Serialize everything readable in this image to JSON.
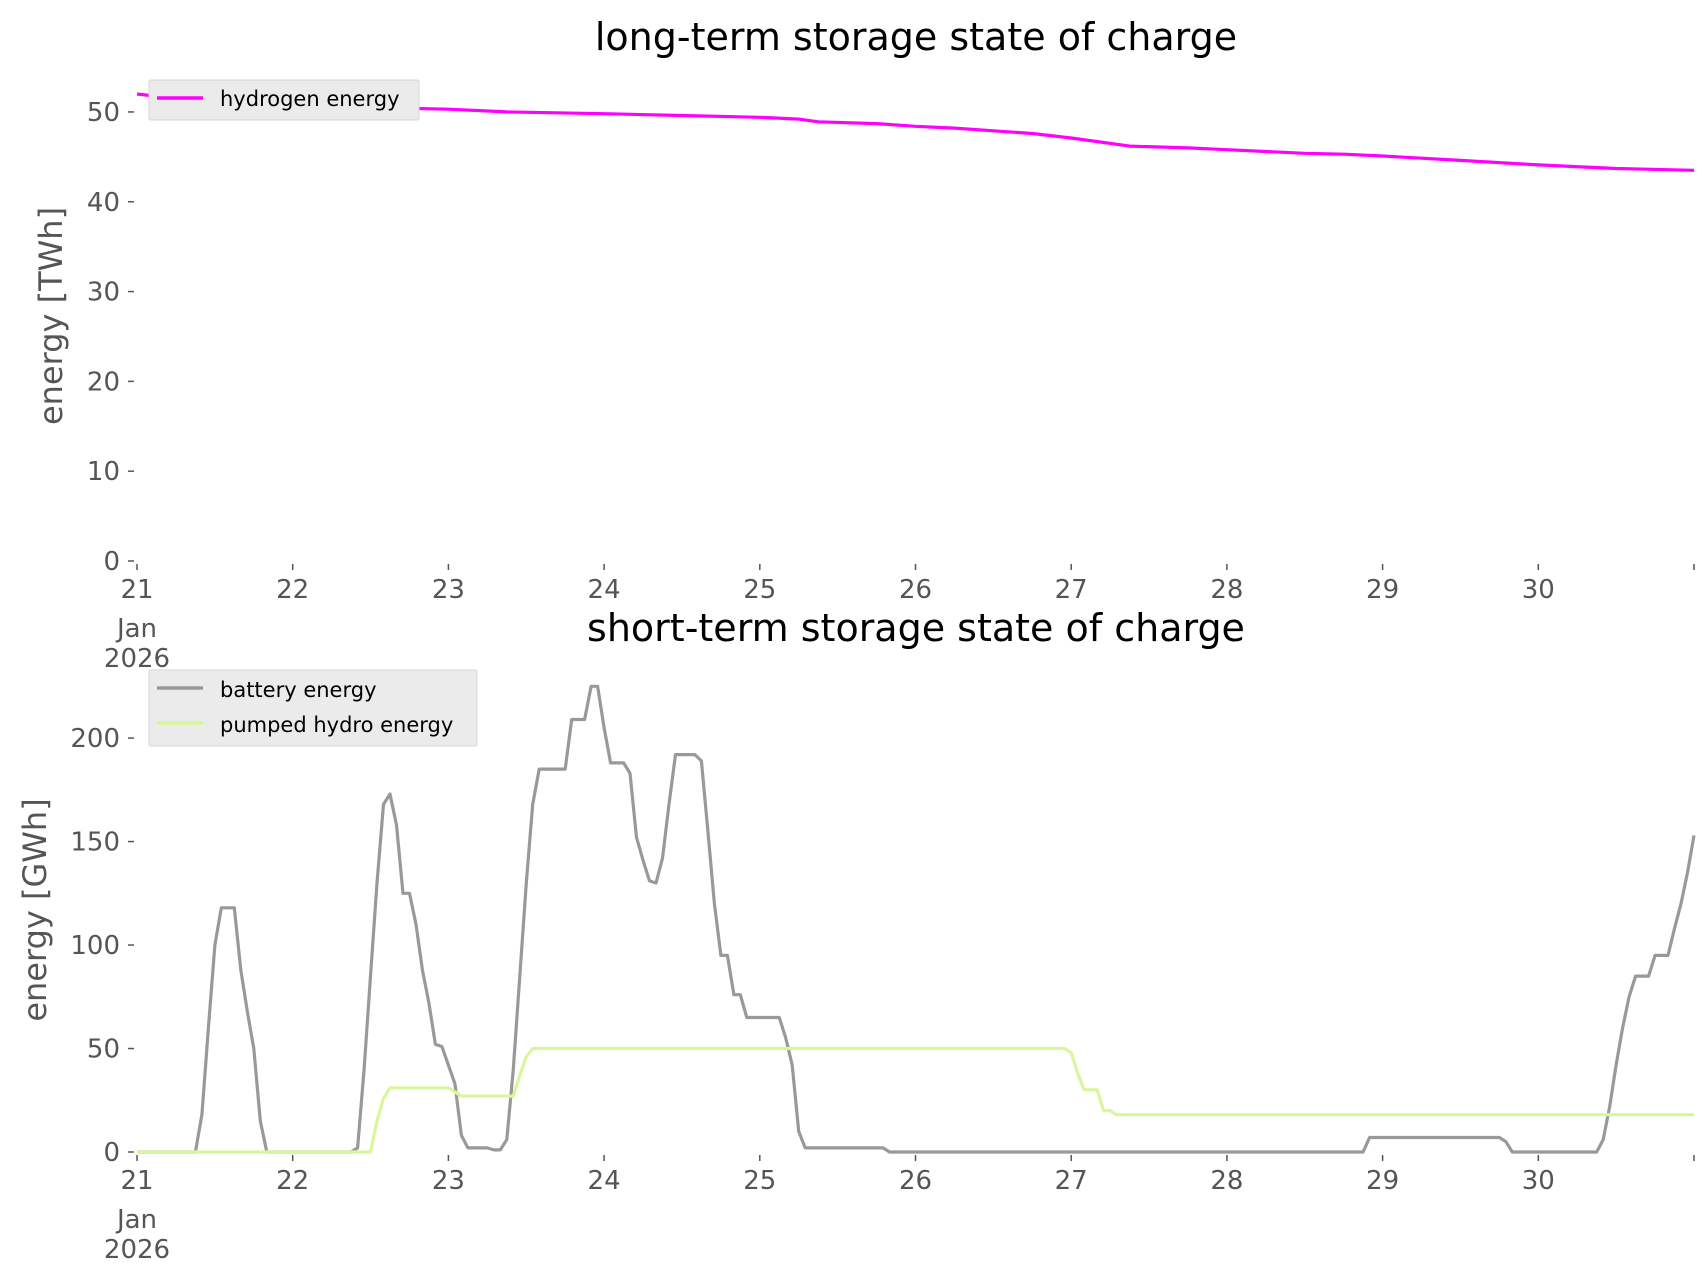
{
  "chart_data": [
    {
      "type": "line",
      "title": "long-term storage state of charge",
      "xlabel": "",
      "ylabel": "energy [TWh]",
      "x_range": [
        "2026-01-21",
        "2026-01-31"
      ],
      "xticks": [
        "21",
        "22",
        "23",
        "24",
        "25",
        "26",
        "27",
        "28",
        "29",
        "30"
      ],
      "xtick_sublabels": [
        "Jan",
        "2026"
      ],
      "ylim": [
        0,
        53
      ],
      "yticks": [
        "0",
        "10",
        "20",
        "30",
        "40",
        "50"
      ],
      "grid": false,
      "legend_position": "upper-left",
      "series": [
        {
          "name": "hydrogen energy",
          "color": "#ff00ff",
          "points": [
            [
              "2026-01-21 00:00",
              52.0
            ],
            [
              "2026-01-21 12:00",
              51.0
            ],
            [
              "2026-01-22 00:00",
              50.8
            ],
            [
              "2026-01-22 12:00",
              50.5
            ],
            [
              "2026-01-23 00:00",
              50.3
            ],
            [
              "2026-01-23 09:00",
              50.0
            ],
            [
              "2026-01-24 00:00",
              49.8
            ],
            [
              "2026-01-24 12:00",
              49.6
            ],
            [
              "2026-01-25 00:00",
              49.4
            ],
            [
              "2026-01-25 06:00",
              49.2
            ],
            [
              "2026-01-25 09:00",
              48.9
            ],
            [
              "2026-01-25 18:00",
              48.7
            ],
            [
              "2026-01-26 00:00",
              48.4
            ],
            [
              "2026-01-26 06:00",
              48.2
            ],
            [
              "2026-01-26 12:00",
              47.9
            ],
            [
              "2026-01-26 18:00",
              47.6
            ],
            [
              "2026-01-27 00:00",
              47.1
            ],
            [
              "2026-01-27 09:00",
              46.2
            ],
            [
              "2026-01-27 18:00",
              46.0
            ],
            [
              "2026-01-28 00:00",
              45.8
            ],
            [
              "2026-01-28 12:00",
              45.4
            ],
            [
              "2026-01-28 18:00",
              45.3
            ],
            [
              "2026-01-29 00:00",
              45.1
            ],
            [
              "2026-01-29 12:00",
              44.6
            ],
            [
              "2026-01-30 00:00",
              44.1
            ],
            [
              "2026-01-30 12:00",
              43.7
            ],
            [
              "2026-01-31 00:00",
              43.5
            ]
          ]
        }
      ]
    },
    {
      "type": "line",
      "title": "short-term storage state of charge",
      "xlabel": "",
      "ylabel": "energy [GWh]",
      "x_range": [
        "2026-01-21",
        "2026-01-31"
      ],
      "xticks": [
        "21",
        "22",
        "23",
        "24",
        "25",
        "26",
        "27",
        "28",
        "29",
        "30"
      ],
      "xtick_sublabels": [
        "Jan",
        "2026"
      ],
      "ylim": [
        0,
        230
      ],
      "yticks": [
        "0",
        "50",
        "100",
        "150",
        "200"
      ],
      "grid": false,
      "legend_position": "upper-left",
      "series": [
        {
          "name": "battery energy",
          "color": "#999999",
          "points": [
            [
              "2026-01-21 00:00",
              0
            ],
            [
              "2026-01-21 09:00",
              0
            ],
            [
              "2026-01-21 10:00",
              18
            ],
            [
              "2026-01-21 11:00",
              60
            ],
            [
              "2026-01-21 12:00",
              100
            ],
            [
              "2026-01-21 13:00",
              118
            ],
            [
              "2026-01-21 15:00",
              118
            ],
            [
              "2026-01-21 16:00",
              88
            ],
            [
              "2026-01-21 17:00",
              68
            ],
            [
              "2026-01-21 18:00",
              50
            ],
            [
              "2026-01-21 19:00",
              15
            ],
            [
              "2026-01-21 20:00",
              0
            ],
            [
              "2026-01-22 09:00",
              0
            ],
            [
              "2026-01-22 10:00",
              2
            ],
            [
              "2026-01-22 11:00",
              40
            ],
            [
              "2026-01-22 12:00",
              85
            ],
            [
              "2026-01-22 13:00",
              130
            ],
            [
              "2026-01-22 14:00",
              168
            ],
            [
              "2026-01-22 15:00",
              173
            ],
            [
              "2026-01-22 16:00",
              158
            ],
            [
              "2026-01-22 17:00",
              125
            ],
            [
              "2026-01-22 18:00",
              125
            ],
            [
              "2026-01-22 19:00",
              110
            ],
            [
              "2026-01-22 20:00",
              88
            ],
            [
              "2026-01-22 21:00",
              72
            ],
            [
              "2026-01-22 22:00",
              52
            ],
            [
              "2026-01-22 23:00",
              51
            ],
            [
              "2026-01-23 00:00",
              42
            ],
            [
              "2026-01-23 01:00",
              33
            ],
            [
              "2026-01-23 02:00",
              8
            ],
            [
              "2026-01-23 03:00",
              2
            ],
            [
              "2026-01-23 06:00",
              2
            ],
            [
              "2026-01-23 07:00",
              1
            ],
            [
              "2026-01-23 08:00",
              1
            ],
            [
              "2026-01-23 09:00",
              6
            ],
            [
              "2026-01-23 10:00",
              40
            ],
            [
              "2026-01-23 11:00",
              85
            ],
            [
              "2026-01-23 12:00",
              130
            ],
            [
              "2026-01-23 13:00",
              168
            ],
            [
              "2026-01-23 14:00",
              185
            ],
            [
              "2026-01-23 18:00",
              185
            ],
            [
              "2026-01-23 19:00",
              209
            ],
            [
              "2026-01-23 21:00",
              209
            ],
            [
              "2026-01-23 22:00",
              225
            ],
            [
              "2026-01-23 23:00",
              225
            ],
            [
              "2026-01-24 00:00",
              205
            ],
            [
              "2026-01-24 01:00",
              188
            ],
            [
              "2026-01-24 03:00",
              188
            ],
            [
              "2026-01-24 04:00",
              183
            ],
            [
              "2026-01-24 05:00",
              152
            ],
            [
              "2026-01-24 06:00",
              141
            ],
            [
              "2026-01-24 07:00",
              131
            ],
            [
              "2026-01-24 08:00",
              130
            ],
            [
              "2026-01-24 09:00",
              142
            ],
            [
              "2026-01-24 10:00",
              168
            ],
            [
              "2026-01-24 11:00",
              192
            ],
            [
              "2026-01-24 14:00",
              192
            ],
            [
              "2026-01-24 15:00",
              189
            ],
            [
              "2026-01-24 16:00",
              155
            ],
            [
              "2026-01-24 17:00",
              120
            ],
            [
              "2026-01-24 18:00",
              95
            ],
            [
              "2026-01-24 19:00",
              95
            ],
            [
              "2026-01-24 20:00",
              76
            ],
            [
              "2026-01-24 21:00",
              76
            ],
            [
              "2026-01-24 22:00",
              65
            ],
            [
              "2026-01-25 03:00",
              65
            ],
            [
              "2026-01-25 04:00",
              55
            ],
            [
              "2026-01-25 05:00",
              42
            ],
            [
              "2026-01-25 06:00",
              10
            ],
            [
              "2026-01-25 07:00",
              2
            ],
            [
              "2026-01-25 19:00",
              2
            ],
            [
              "2026-01-25 20:00",
              0
            ],
            [
              "2026-01-28 21:00",
              0
            ],
            [
              "2026-01-28 22:00",
              7
            ],
            [
              "2026-01-29 18:00",
              7
            ],
            [
              "2026-01-29 19:00",
              5
            ],
            [
              "2026-01-29 20:00",
              0
            ],
            [
              "2026-01-30 09:00",
              0
            ],
            [
              "2026-01-30 10:00",
              6
            ],
            [
              "2026-01-30 11:00",
              22
            ],
            [
              "2026-01-30 12:00",
              42
            ],
            [
              "2026-01-30 13:00",
              60
            ],
            [
              "2026-01-30 14:00",
              75
            ],
            [
              "2026-01-30 15:00",
              85
            ],
            [
              "2026-01-30 17:00",
              85
            ],
            [
              "2026-01-30 18:00",
              95
            ],
            [
              "2026-01-30 20:00",
              95
            ],
            [
              "2026-01-30 21:00",
              108
            ],
            [
              "2026-01-30 22:00",
              120
            ],
            [
              "2026-01-30 23:00",
              135
            ],
            [
              "2026-01-31 00:00",
              153
            ]
          ]
        },
        {
          "name": "pumped hydro energy",
          "color": "#d8f79a",
          "points": [
            [
              "2026-01-21 00:00",
              0
            ],
            [
              "2026-01-22 12:00",
              0
            ],
            [
              "2026-01-22 13:00",
              15
            ],
            [
              "2026-01-22 14:00",
              26
            ],
            [
              "2026-01-22 15:00",
              31
            ],
            [
              "2026-01-23 00:00",
              31
            ],
            [
              "2026-01-23 01:00",
              29
            ],
            [
              "2026-01-23 02:00",
              27
            ],
            [
              "2026-01-23 10:00",
              27
            ],
            [
              "2026-01-23 11:00",
              37
            ],
            [
              "2026-01-23 12:00",
              46
            ],
            [
              "2026-01-23 13:00",
              50
            ],
            [
              "2026-01-26 23:00",
              50
            ],
            [
              "2026-01-27 00:00",
              48
            ],
            [
              "2026-01-27 01:00",
              38
            ],
            [
              "2026-01-27 02:00",
              30
            ],
            [
              "2026-01-27 04:00",
              30
            ],
            [
              "2026-01-27 05:00",
              20
            ],
            [
              "2026-01-27 06:00",
              20
            ],
            [
              "2026-01-27 07:00",
              18
            ],
            [
              "2026-01-31 00:00",
              18
            ]
          ]
        }
      ]
    }
  ]
}
